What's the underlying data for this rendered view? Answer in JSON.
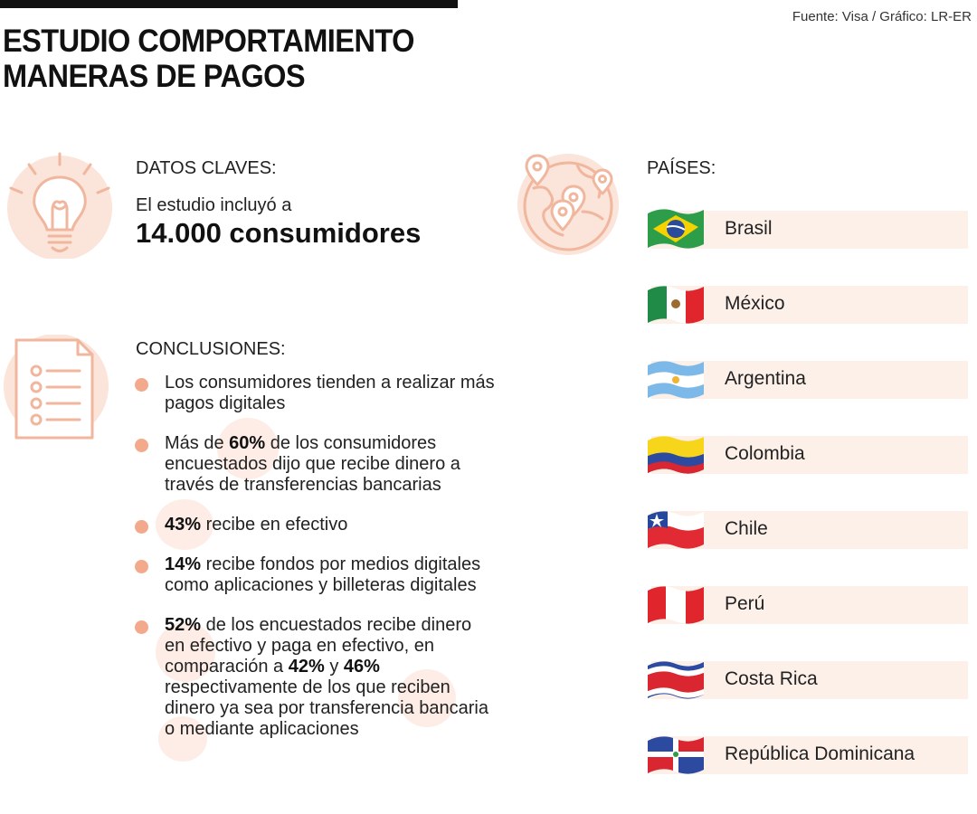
{
  "header": {
    "title_line1": "ESTUDIO COMPORTAMIENTO",
    "title_line2": "MANERAS DE PAGOS",
    "source": "Fuente: Visa / Gráfico: LR-ER"
  },
  "key_data": {
    "label": "DATOS CLAVES:",
    "line1": "El estudio incluyó a",
    "line2": "14.000 consumidores"
  },
  "conclusions": {
    "label": "CONCLUSIONES:",
    "items": [
      {
        "parts": [
          "",
          "",
          "Los consumidores tienden a realizar más pagos digitales"
        ]
      },
      {
        "parts": [
          "Más de ",
          "60%",
          " de los consumidores encuestados dijo que recibe dinero a través de transferencias bancarias"
        ]
      },
      {
        "parts": [
          "",
          "43%",
          " recibe en efectivo"
        ]
      },
      {
        "parts": [
          "",
          "14%",
          " recibe fondos por medios digitales como aplicaciones y billeteras digitales"
        ]
      },
      {
        "parts": [
          "",
          "52%",
          " de los encuestados recibe dinero en efectivo y paga en efectivo, en comparación a ",
          "42%",
          " y ",
          "46%",
          " respectivamente de los que reciben dinero ya sea por transferencia bancaria o mediante aplicaciones"
        ]
      }
    ]
  },
  "countries": {
    "label": "PAÍSES:",
    "items": [
      {
        "name": "Brasil",
        "flag": "brazil-flag"
      },
      {
        "name": "México",
        "flag": "mexico-flag"
      },
      {
        "name": "Argentina",
        "flag": "argentina-flag"
      },
      {
        "name": "Colombia",
        "flag": "colombia-flag"
      },
      {
        "name": "Chile",
        "flag": "chile-flag"
      },
      {
        "name": "Perú",
        "flag": "peru-flag"
      },
      {
        "name": "Costa Rica",
        "flag": "costa-rica-flag"
      },
      {
        "name": "República Dominicana",
        "flag": "dominican-republic-flag"
      }
    ]
  },
  "colors": {
    "accent": "#f3a98b",
    "icon_bg": "#fbe4d9",
    "row_bg": "#fdf0e9",
    "icon_stroke": "#f0b79e"
  }
}
